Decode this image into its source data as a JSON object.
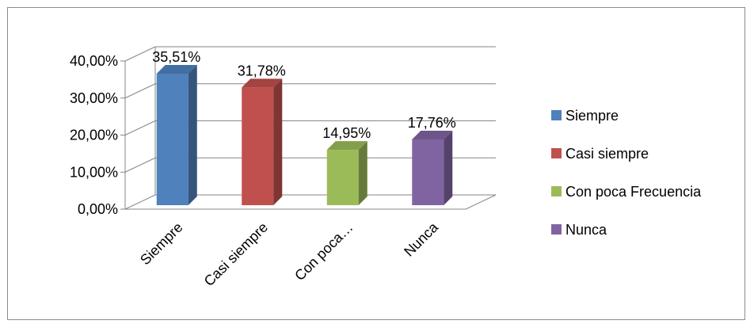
{
  "chart_data": {
    "type": "bar",
    "categories": [
      "Siempre",
      "Casi siempre",
      "Con poca…",
      "Nunca"
    ],
    "series": [
      {
        "values": [
          35.51,
          31.78,
          14.95,
          17.76
        ]
      }
    ],
    "data_labels": [
      "35,51%",
      "31,78%",
      "14,95%",
      "17,76%"
    ],
    "y_ticks": [
      "0,00%",
      "10,00%",
      "20,00%",
      "30,00%",
      "40,00%"
    ],
    "ylim": [
      0,
      40
    ],
    "legend": {
      "position": "right",
      "items": [
        {
          "label": "Siempre",
          "color": "#4F81BD"
        },
        {
          "label": "Casi siempre",
          "color": "#C0504D"
        },
        {
          "label": "Con poca Frecuencia",
          "color": "#9BBB59"
        },
        {
          "label": "Nunca",
          "color": "#8064A2"
        }
      ]
    },
    "grid": true,
    "style": "3d-column",
    "colors": [
      "#4F81BD",
      "#C0504D",
      "#9BBB59",
      "#8064A2"
    ]
  }
}
